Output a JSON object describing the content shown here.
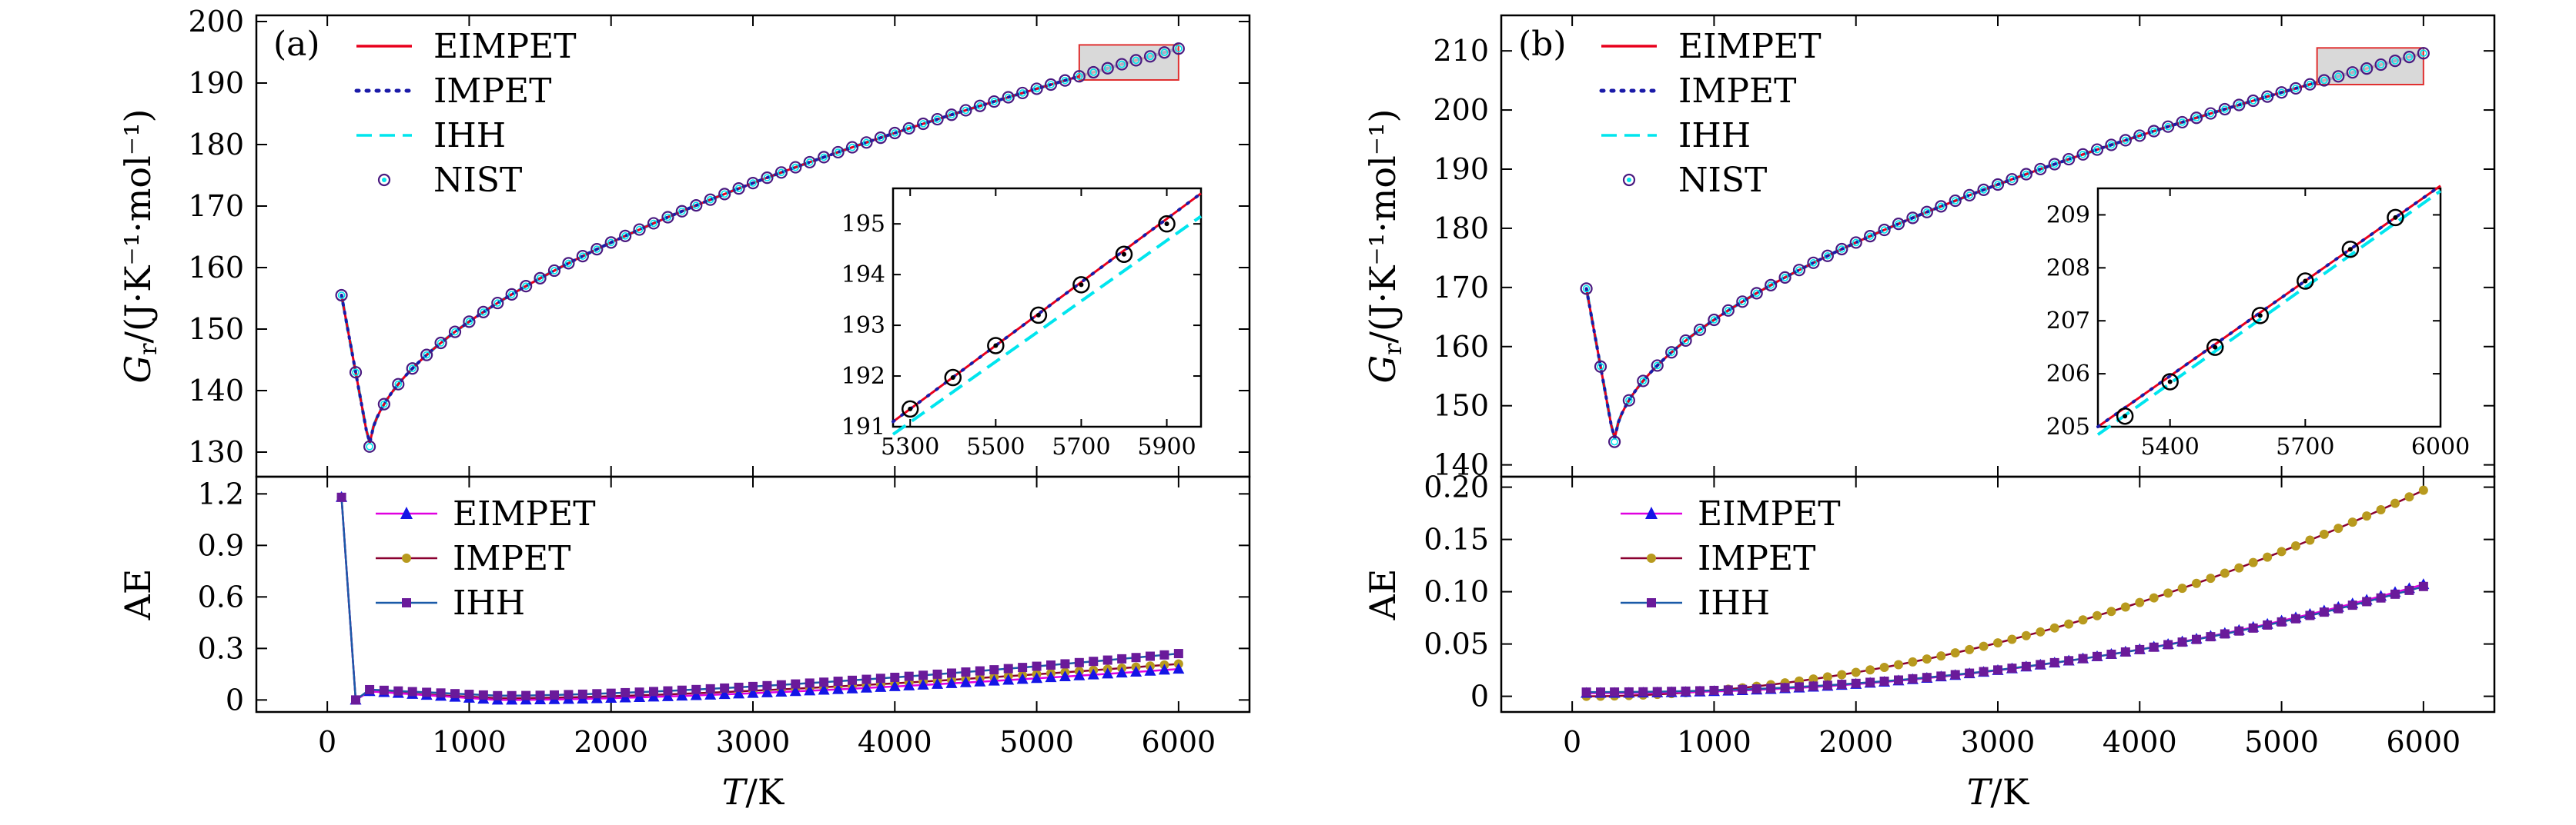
{
  "colors": {
    "eimpet_line": "#e8001c",
    "impet_line": "#1a1aa8",
    "ihh_line": "#00e5ee",
    "nist_ring": "#4a1a80",
    "ae_eimpet": "#1414e6",
    "ae_eimpet_line": "#e000e0",
    "ae_impet": "#b89a1e",
    "ae_impet_line": "#8a0030",
    "ae_ihh": "#6a1a9a",
    "ae_ihh_line": "#1a5aa8",
    "highlight_fill": "#cfcfcf",
    "highlight_edge": "#e03030"
  },
  "chart_data": [
    {
      "panel_label": "(a)",
      "type": "line",
      "title": "",
      "xlabel": "T/K",
      "ylabel": "G_r/(J·K⁻¹·mol⁻¹)",
      "xlim": [
        -500,
        6500
      ],
      "xticks": [
        "0",
        "1000",
        "2000",
        "3000",
        "4000",
        "5000",
        "6000"
      ],
      "top": {
        "ylim": [
          126,
          201
        ],
        "yticks": [
          "130",
          "140",
          "150",
          "160",
          "170",
          "180",
          "190",
          "200"
        ],
        "legend": [
          "EIMPET",
          "IMPET",
          "IHH",
          "NIST"
        ],
        "series": [
          {
            "name": "EIMPET",
            "style": "solid"
          },
          {
            "name": "IMPET",
            "style": "dotted"
          },
          {
            "name": "IHH",
            "style": "dashed"
          },
          {
            "name": "NIST",
            "style": "ring-markers"
          }
        ],
        "curve": {
          "T_min": 100,
          "G_100": 155.5,
          "T_min_point": 298,
          "G_min": 130.7,
          "T_end": 6000,
          "G_end": 195.6,
          "shape_exp": 0.55
        },
        "inset": {
          "xlim": [
            5260,
            5980
          ],
          "ylim": [
            191,
            195.7
          ],
          "xticks": [
            "5300",
            "5500",
            "5700",
            "5900"
          ],
          "yticks": [
            "191",
            "192",
            "193",
            "194",
            "195"
          ],
          "nist_points": [
            [
              5300,
              191.35
            ],
            [
              5400,
              191.97
            ],
            [
              5500,
              192.6
            ],
            [
              5600,
              193.2
            ],
            [
              5700,
              193.8
            ],
            [
              5800,
              194.4
            ],
            [
              5900,
              195.0
            ]
          ],
          "eimpet_line": [
            [
              5260,
              191.1
            ],
            [
              5980,
              195.6
            ]
          ],
          "ihh_line": [
            [
              5260,
              190.85
            ],
            [
              5980,
              195.15
            ]
          ]
        },
        "highlight_box": {
          "x": [
            5300,
            6000
          ],
          "y": [
            190.5,
            196.2
          ]
        }
      },
      "bottom": {
        "ylim": [
          -0.07,
          1.3
        ],
        "yticks": [
          "0",
          "0.3",
          "0.6",
          "0.9",
          "1.2"
        ],
        "legend": [
          "EIMPET",
          "IMPET",
          "IHH"
        ],
        "series": [
          {
            "name": "EIMPET",
            "spike": 1.18,
            "second": 0.0,
            "third": 0.05,
            "min": 0.0,
            "end": 0.18
          },
          {
            "name": "IMPET",
            "spike": 1.18,
            "second": 0.0,
            "third": 0.05,
            "min": 0.01,
            "end": 0.21
          },
          {
            "name": "IHH",
            "spike": 1.18,
            "second": 0.0,
            "third": 0.06,
            "min": 0.025,
            "end": 0.27
          }
        ]
      }
    },
    {
      "panel_label": "(b)",
      "type": "line",
      "title": "",
      "xlabel": "T/K",
      "ylabel": "G_r/(J·K⁻¹·mol⁻¹)",
      "xlim": [
        -500,
        6500
      ],
      "xticks": [
        "0",
        "1000",
        "2000",
        "3000",
        "4000",
        "5000",
        "6000"
      ],
      "top": {
        "ylim": [
          138,
          216
        ],
        "yticks": [
          "140",
          "150",
          "160",
          "170",
          "180",
          "190",
          "200",
          "210"
        ],
        "legend": [
          "EIMPET",
          "IMPET",
          "IHH",
          "NIST"
        ],
        "series": [
          {
            "name": "EIMPET",
            "style": "solid"
          },
          {
            "name": "IMPET",
            "style": "dotted"
          },
          {
            "name": "IHH",
            "style": "dashed"
          },
          {
            "name": "NIST",
            "style": "ring-markers"
          }
        ],
        "curve": {
          "T_min": 100,
          "G_100": 169.8,
          "T_min_point": 298,
          "G_min": 143.7,
          "T_end": 6000,
          "G_end": 209.6,
          "shape_exp": 0.55
        },
        "inset": {
          "xlim": [
            5240,
            6000
          ],
          "ylim": [
            205,
            209.5
          ],
          "xticks": [
            "5400",
            "5700",
            "6000"
          ],
          "yticks": [
            "205",
            "206",
            "207",
            "208",
            "209"
          ],
          "nist_points": [
            [
              5300,
              205.2
            ],
            [
              5400,
              205.85
            ],
            [
              5500,
              206.5
            ],
            [
              5600,
              207.1
            ],
            [
              5700,
              207.75
            ],
            [
              5800,
              208.35
            ],
            [
              5900,
              208.95
            ]
          ],
          "eimpet_line": [
            [
              5240,
              205.0
            ],
            [
              6000,
              209.55
            ]
          ],
          "ihh_line": [
            [
              5240,
              204.85
            ],
            [
              6000,
              209.45
            ]
          ]
        },
        "highlight_box": {
          "x": [
            5250,
            6000
          ],
          "y": [
            204.3,
            210.5
          ]
        }
      },
      "bottom": {
        "ylim": [
          -0.015,
          0.21
        ],
        "yticks": [
          "0",
          "0.05",
          "0.10",
          "0.15",
          "0.20"
        ],
        "legend": [
          "EIMPET",
          "IMPET",
          "IHH"
        ],
        "series": [
          {
            "name": "EIMPET",
            "start": 0.003,
            "end": 0.107
          },
          {
            "name": "IMPET",
            "start": 0.0,
            "end": 0.197
          },
          {
            "name": "IHH",
            "start": 0.004,
            "end": 0.105
          }
        ]
      }
    }
  ]
}
